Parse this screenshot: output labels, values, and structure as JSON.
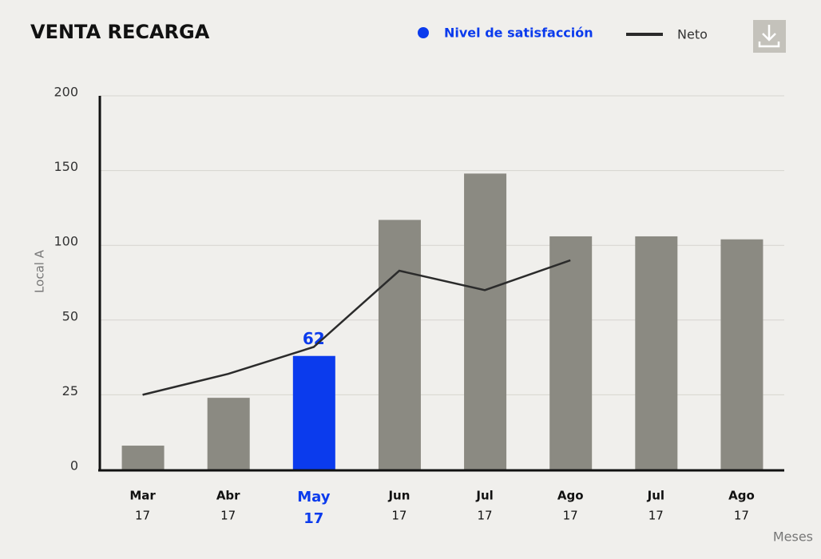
{
  "chart_data": {
    "type": "bar_line",
    "title": "VENTA RECARGA",
    "y_label": "Local A",
    "x_label": "Meses",
    "categories": [
      "Mar",
      "Abr",
      "May",
      "Jun",
      "Jul",
      "Ago",
      "Jul",
      "Ago"
    ],
    "category_years": [
      "17",
      "17",
      "17",
      "17",
      "17",
      "17",
      "17",
      "17"
    ],
    "highlight_category": "May",
    "highlight_color": "#0b3bed",
    "annotation": "62",
    "series": [
      {
        "name": "Nivel de satisfacción",
        "type": "bar",
        "color": "#8b8a82",
        "values": [
          8,
          24,
          38,
          117,
          148,
          106,
          106,
          104
        ]
      },
      {
        "name": "Neto",
        "type": "line",
        "color": "#2b2b2b",
        "values": [
          25,
          32,
          41,
          83,
          70,
          90,
          null,
          null
        ]
      }
    ],
    "ylim": [
      0,
      200
    ],
    "yticks": [
      0,
      25,
      50,
      100,
      150,
      200
    ],
    "grid": true
  }
}
